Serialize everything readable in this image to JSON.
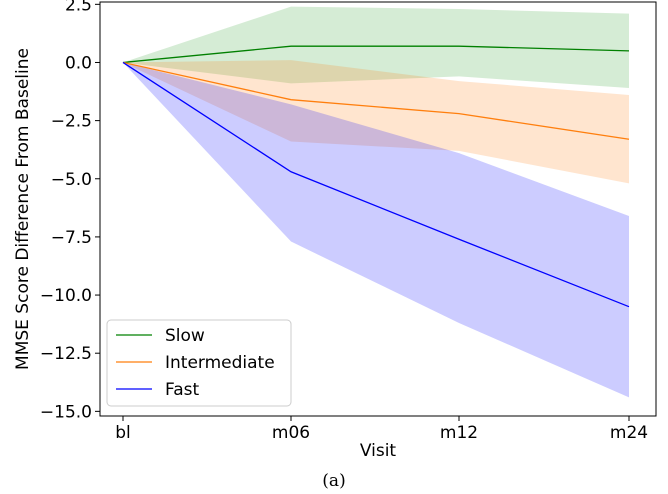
{
  "chart_data": {
    "type": "line",
    "categories": [
      "bl",
      "m06",
      "m12",
      "m24"
    ],
    "xlabel": "Visit",
    "ylabel": "MMSE Score Difference From Baseline",
    "ylim": [
      -15.2,
      2.6
    ],
    "yticks": [
      2.5,
      0.0,
      -2.5,
      -5.0,
      -7.5,
      -10.0,
      -12.5,
      -15.0
    ],
    "ytick_labels": [
      "2.5",
      "0.0",
      "−2.5",
      "−5.0",
      "−7.5",
      "−10.0",
      "−12.5",
      "−15.0"
    ],
    "grid": false,
    "legend_position": "lower-left",
    "series": [
      {
        "name": "Slow",
        "color": "#008000",
        "fill": "#2ca02c",
        "values": [
          0,
          0.7,
          0.7,
          0.5
        ],
        "upper": [
          0,
          2.4,
          2.3,
          2.1
        ],
        "lower": [
          0,
          -0.9,
          -0.6,
          -1.1
        ]
      },
      {
        "name": "Intermediate",
        "color": "#ff7f0e",
        "fill": "#ff7f0e",
        "values": [
          0,
          -1.6,
          -2.2,
          -3.3
        ],
        "upper": [
          0,
          0.1,
          -0.8,
          -1.4
        ],
        "lower": [
          0,
          -3.4,
          -3.8,
          -5.2
        ]
      },
      {
        "name": "Fast",
        "color": "#0000ff",
        "fill": "#0000ff",
        "values": [
          0,
          -4.7,
          -7.6,
          -10.5
        ],
        "upper": [
          0,
          -1.8,
          -3.9,
          -6.6
        ],
        "lower": [
          0,
          -7.7,
          -11.2,
          -14.4
        ]
      }
    ]
  },
  "caption": "(a)"
}
